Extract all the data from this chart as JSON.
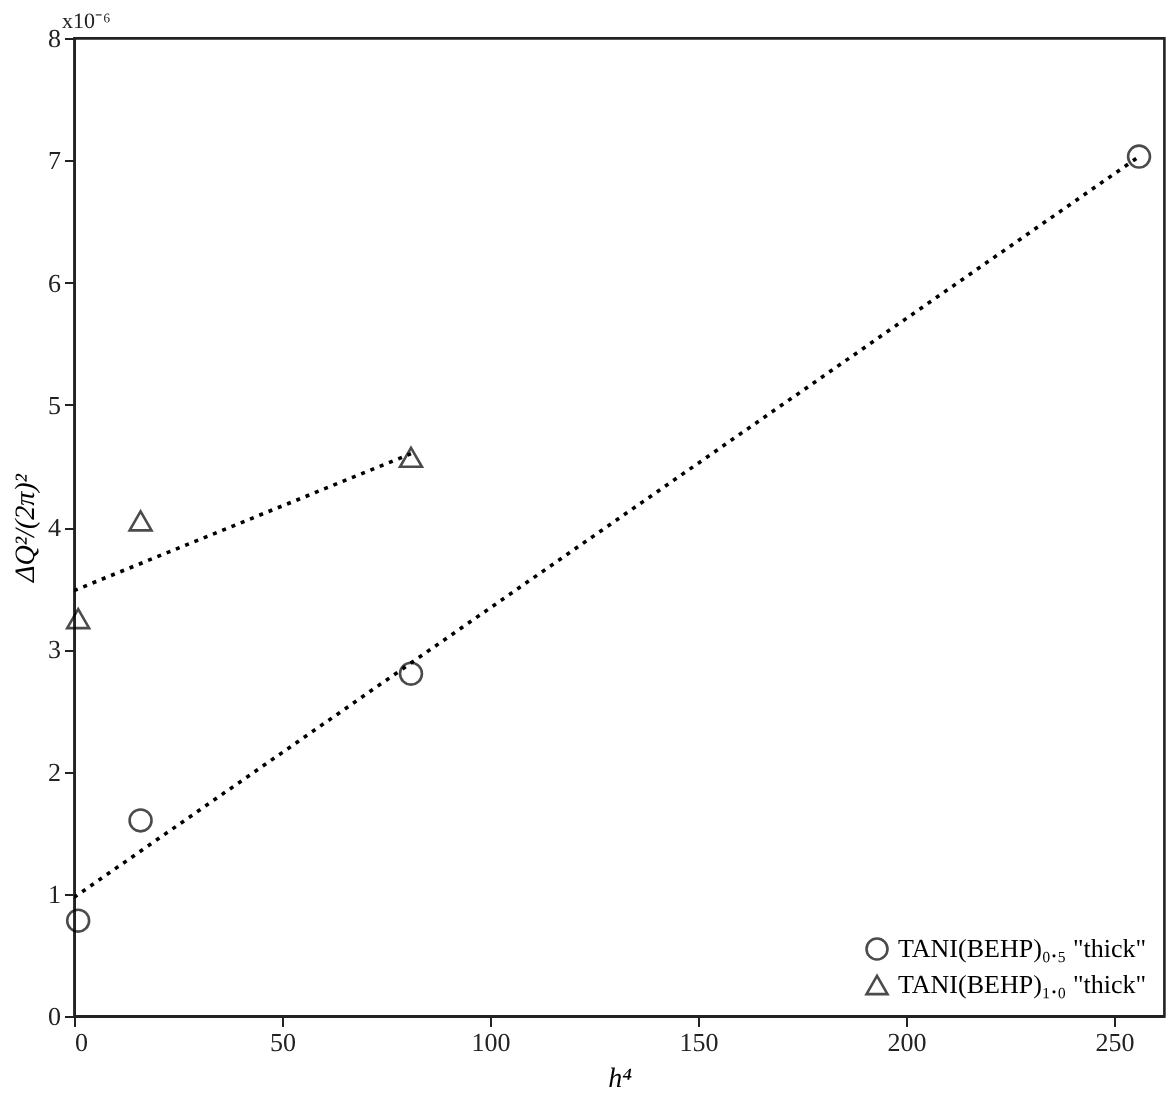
{
  "chart_data": {
    "type": "scatter",
    "xlabel": "h⁴",
    "ylabel": "ΔQ²/(2π)²",
    "xlim": [
      0,
      262
    ],
    "xticks": [
      0,
      50,
      100,
      150,
      200,
      250
    ],
    "ylim": [
      0,
      8
    ],
    "yticks": [
      0,
      1,
      2,
      3,
      4,
      5,
      6,
      7,
      8
    ],
    "annotations": [
      "x10⁻⁶"
    ],
    "grid": false,
    "legend": "bottom right",
    "series": [
      {
        "name": "TANI(BEHP)₀.₅ \"thick\"",
        "marker": "circle",
        "color": "#000000",
        "x": [
          1,
          16,
          81,
          256
        ],
        "values": [
          0.78,
          1.6,
          2.8,
          7.03
        ]
      },
      {
        "name": "TANI(BEHP)₁.₀ \"thick\"",
        "marker": "triangle",
        "color": "#000000",
        "x": [
          1,
          16,
          81
        ],
        "values": [
          3.25,
          4.05,
          4.57
        ]
      },
      {
        "type": "line",
        "line_style": "dotted",
        "marker": "none",
        "color": "#000000",
        "x": [
          0,
          256
        ],
        "values": [
          0.97,
          7.03
        ]
      },
      {
        "type": "line",
        "line_style": "dotted",
        "marker": "none",
        "color": "#000000",
        "x": [
          0,
          81
        ],
        "values": [
          3.48,
          4.6
        ]
      }
    ]
  }
}
